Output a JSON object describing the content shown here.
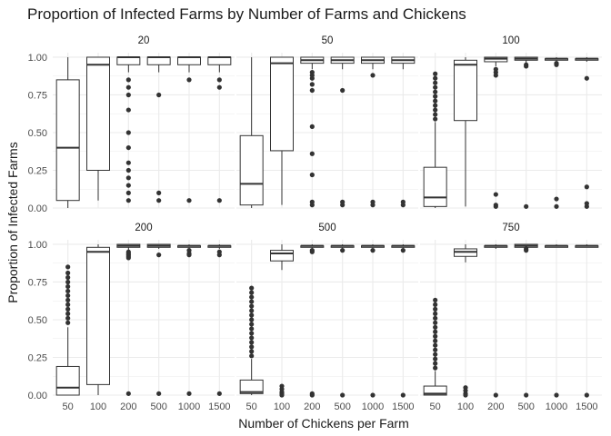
{
  "chart_data": {
    "type": "boxplot",
    "title": "Proportion of Infected Farms by Number of Farms and Chickens",
    "xlabel": "Number of Chickens per Farm",
    "ylabel": "Proportion of Infected Farms",
    "categories": [
      "50",
      "100",
      "200",
      "500",
      "1000",
      "1500"
    ],
    "y_ticks": [
      "0.00",
      "0.25",
      "0.50",
      "0.75",
      "1.00"
    ],
    "ylim": [
      0,
      1.03
    ],
    "grid": true,
    "layout": "2x3 facets by number of farms",
    "colors": {
      "box_stroke": "#333333",
      "grid": "#ebebeb",
      "outlier": "#333333"
    },
    "facets": [
      {
        "label": "20",
        "boxes": [
          {
            "q1": 0.05,
            "median": 0.4,
            "q3": 0.85,
            "lo": 0.0,
            "hi": 1.0,
            "outliers": []
          },
          {
            "q1": 0.25,
            "median": 0.95,
            "q3": 1.0,
            "lo": 0.05,
            "hi": 1.0,
            "outliers": []
          },
          {
            "q1": 0.95,
            "median": 1.0,
            "q3": 1.0,
            "lo": 0.9,
            "hi": 1.0,
            "outliers": [
              0.85,
              0.8,
              0.75,
              0.65,
              0.5,
              0.4,
              0.3,
              0.25,
              0.2,
              0.15,
              0.1,
              0.05
            ]
          },
          {
            "q1": 0.95,
            "median": 1.0,
            "q3": 1.0,
            "lo": 0.9,
            "hi": 1.0,
            "outliers": [
              0.75,
              0.1,
              0.05
            ]
          },
          {
            "q1": 0.95,
            "median": 1.0,
            "q3": 1.0,
            "lo": 0.9,
            "hi": 1.0,
            "outliers": [
              0.85,
              0.05
            ]
          },
          {
            "q1": 0.95,
            "median": 1.0,
            "q3": 1.0,
            "lo": 0.9,
            "hi": 1.0,
            "outliers": [
              0.85,
              0.8,
              0.05
            ]
          }
        ]
      },
      {
        "label": "50",
        "boxes": [
          {
            "q1": 0.02,
            "median": 0.16,
            "q3": 0.48,
            "lo": 0.0,
            "hi": 1.0,
            "outliers": []
          },
          {
            "q1": 0.38,
            "median": 0.96,
            "q3": 1.0,
            "lo": 0.02,
            "hi": 1.0,
            "outliers": []
          },
          {
            "q1": 0.96,
            "median": 0.98,
            "q3": 1.0,
            "lo": 0.92,
            "hi": 1.0,
            "outliers": [
              0.9,
              0.88,
              0.86,
              0.82,
              0.78,
              0.54,
              0.36,
              0.22,
              0.04,
              0.02
            ]
          },
          {
            "q1": 0.96,
            "median": 0.98,
            "q3": 1.0,
            "lo": 0.92,
            "hi": 1.0,
            "outliers": [
              0.78,
              0.04,
              0.02
            ]
          },
          {
            "q1": 0.96,
            "median": 0.98,
            "q3": 1.0,
            "lo": 0.92,
            "hi": 1.0,
            "outliers": [
              0.88,
              0.04,
              0.02
            ]
          },
          {
            "q1": 0.96,
            "median": 0.98,
            "q3": 1.0,
            "lo": 0.92,
            "hi": 1.0,
            "outliers": [
              0.04,
              0.02
            ]
          }
        ]
      },
      {
        "label": "100",
        "boxes": [
          {
            "q1": 0.01,
            "median": 0.07,
            "q3": 0.27,
            "lo": 0.0,
            "hi": 0.57,
            "outliers": [
              0.59,
              0.62,
              0.65,
              0.68,
              0.71,
              0.74,
              0.77,
              0.8,
              0.83,
              0.86,
              0.89
            ]
          },
          {
            "q1": 0.58,
            "median": 0.95,
            "q3": 0.98,
            "lo": 0.01,
            "hi": 1.0,
            "outliers": []
          },
          {
            "q1": 0.97,
            "median": 0.99,
            "q3": 1.0,
            "lo": 0.94,
            "hi": 1.0,
            "outliers": [
              0.92,
              0.9,
              0.88,
              0.09,
              0.02,
              0.01
            ]
          },
          {
            "q1": 0.98,
            "median": 0.99,
            "q3": 1.0,
            "lo": 0.96,
            "hi": 1.0,
            "outliers": [
              0.95,
              0.94,
              0.01
            ]
          },
          {
            "q1": 0.98,
            "median": 0.99,
            "q3": 0.99,
            "lo": 0.97,
            "hi": 1.0,
            "outliers": [
              0.96,
              0.95,
              0.06,
              0.01
            ]
          },
          {
            "q1": 0.98,
            "median": 0.99,
            "q3": 0.99,
            "lo": 0.97,
            "hi": 1.0,
            "outliers": [
              0.86,
              0.14,
              0.03,
              0.01
            ]
          }
        ]
      },
      {
        "label": "200",
        "boxes": [
          {
            "q1": 0.0,
            "median": 0.05,
            "q3": 0.19,
            "lo": 0.0,
            "hi": 0.45,
            "outliers": [
              0.48,
              0.51,
              0.54,
              0.57,
              0.6,
              0.63,
              0.66,
              0.69,
              0.72,
              0.75,
              0.78,
              0.81,
              0.85
            ]
          },
          {
            "q1": 0.07,
            "median": 0.95,
            "q3": 0.98,
            "lo": 0.0,
            "hi": 1.0,
            "outliers": []
          },
          {
            "q1": 0.98,
            "median": 0.99,
            "q3": 1.0,
            "lo": 0.96,
            "hi": 1.0,
            "outliers": [
              0.95,
              0.94,
              0.93,
              0.92,
              0.91,
              0.01
            ]
          },
          {
            "q1": 0.98,
            "median": 0.99,
            "q3": 1.0,
            "lo": 0.97,
            "hi": 1.0,
            "outliers": [
              0.93,
              0.01
            ]
          },
          {
            "q1": 0.98,
            "median": 0.99,
            "q3": 0.99,
            "lo": 0.97,
            "hi": 1.0,
            "outliers": [
              0.96,
              0.94,
              0.93,
              0.01
            ]
          },
          {
            "q1": 0.98,
            "median": 0.99,
            "q3": 0.99,
            "lo": 0.97,
            "hi": 1.0,
            "outliers": [
              0.95,
              0.93,
              0.01
            ]
          }
        ]
      },
      {
        "label": "500",
        "boxes": [
          {
            "q1": 0.01,
            "median": 0.02,
            "q3": 0.1,
            "lo": 0.0,
            "hi": 0.24,
            "outliers": [
              0.26,
              0.29,
              0.32,
              0.35,
              0.38,
              0.41,
              0.44,
              0.47,
              0.5,
              0.53,
              0.56,
              0.59,
              0.62,
              0.65,
              0.68,
              0.71
            ]
          },
          {
            "q1": 0.89,
            "median": 0.94,
            "q3": 0.96,
            "lo": 0.83,
            "hi": 1.0,
            "outliers": [
              0.06,
              0.04,
              0.02,
              0.01,
              0.0
            ]
          },
          {
            "q1": 0.98,
            "median": 0.99,
            "q3": 0.99,
            "lo": 0.97,
            "hi": 1.0,
            "outliers": [
              0.96,
              0.95,
              0.01,
              0.0
            ]
          },
          {
            "q1": 0.98,
            "median": 0.99,
            "q3": 0.99,
            "lo": 0.97,
            "hi": 1.0,
            "outliers": [
              0.96,
              0.0
            ]
          },
          {
            "q1": 0.98,
            "median": 0.99,
            "q3": 0.99,
            "lo": 0.97,
            "hi": 1.0,
            "outliers": [
              0.96,
              0.0
            ]
          },
          {
            "q1": 0.98,
            "median": 0.99,
            "q3": 0.99,
            "lo": 0.97,
            "hi": 1.0,
            "outliers": [
              0.96,
              0.0
            ]
          }
        ]
      },
      {
        "label": "750",
        "boxes": [
          {
            "q1": 0.0,
            "median": 0.01,
            "q3": 0.06,
            "lo": 0.0,
            "hi": 0.16,
            "outliers": [
              0.18,
              0.21,
              0.24,
              0.27,
              0.3,
              0.33,
              0.36,
              0.39,
              0.42,
              0.45,
              0.48,
              0.51,
              0.54,
              0.57,
              0.6,
              0.63
            ]
          },
          {
            "q1": 0.92,
            "median": 0.95,
            "q3": 0.97,
            "lo": 0.88,
            "hi": 1.0,
            "outliers": [
              0.05,
              0.03,
              0.01,
              0.0
            ]
          },
          {
            "q1": 0.98,
            "median": 0.99,
            "q3": 0.99,
            "lo": 0.97,
            "hi": 1.0,
            "outliers": [
              0.0
            ]
          },
          {
            "q1": 0.98,
            "median": 0.99,
            "q3": 1.0,
            "lo": 0.97,
            "hi": 1.0,
            "outliers": [
              0.97,
              0.96,
              0.0
            ]
          },
          {
            "q1": 0.98,
            "median": 0.99,
            "q3": 0.99,
            "lo": 0.98,
            "hi": 1.0,
            "outliers": [
              0.0
            ]
          },
          {
            "q1": 0.98,
            "median": 0.99,
            "q3": 0.99,
            "lo": 0.98,
            "hi": 1.0,
            "outliers": [
              0.0
            ]
          }
        ]
      }
    ]
  }
}
